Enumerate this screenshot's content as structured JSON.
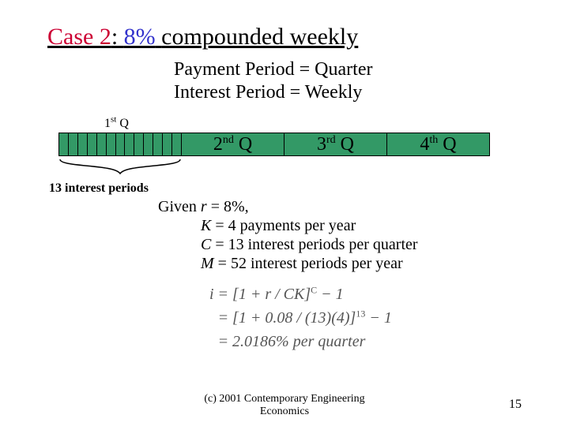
{
  "title": {
    "case_label": "Case 2",
    "case_color": "#cc0033",
    "pct": "8%",
    "pct_color": "#3333cc",
    "rest": "compounded weekly"
  },
  "subtitle": {
    "line1": "Payment Period = Quarter",
    "line2": "Interest Period = Weekly"
  },
  "first_q_label_pre": "1",
  "first_q_label_sup": "st",
  "first_q_label_post": " Q",
  "bar": {
    "bg_color": "#339966",
    "first_ticks": 13,
    "q2_pre": "2",
    "q2_sup": "nd",
    "q2_post": " Q",
    "q3_pre": "3",
    "q3_sup": "rd",
    "q3_post": " Q",
    "q4_pre": "4",
    "q4_sup": "th",
    "q4_post": " Q"
  },
  "periods_label": "13 interest periods",
  "given": {
    "line1_pre": "Given ",
    "line1_var": "r",
    "line1_post": " = 8%,",
    "line2_var": "K",
    "line2_post": " = 4 payments per year",
    "line3_var": "C",
    "line3_post": " = 13 interest periods per quarter",
    "line4_var": "M",
    "line4_post": " = 52 interest periods per year"
  },
  "formula": {
    "row1_a": "i = [1 + r / CK]",
    "row1_sup": "C",
    "row1_b": " − 1",
    "row2_a": "= [1 + 0.08 / (13)(4)]",
    "row2_sup": "13",
    "row2_b": " − 1",
    "row3": "= 2.0186% per quarter"
  },
  "footer": {
    "line1": "(c) 2001  Contemporary Engineering",
    "line2": "Economics"
  },
  "page_num": "15"
}
